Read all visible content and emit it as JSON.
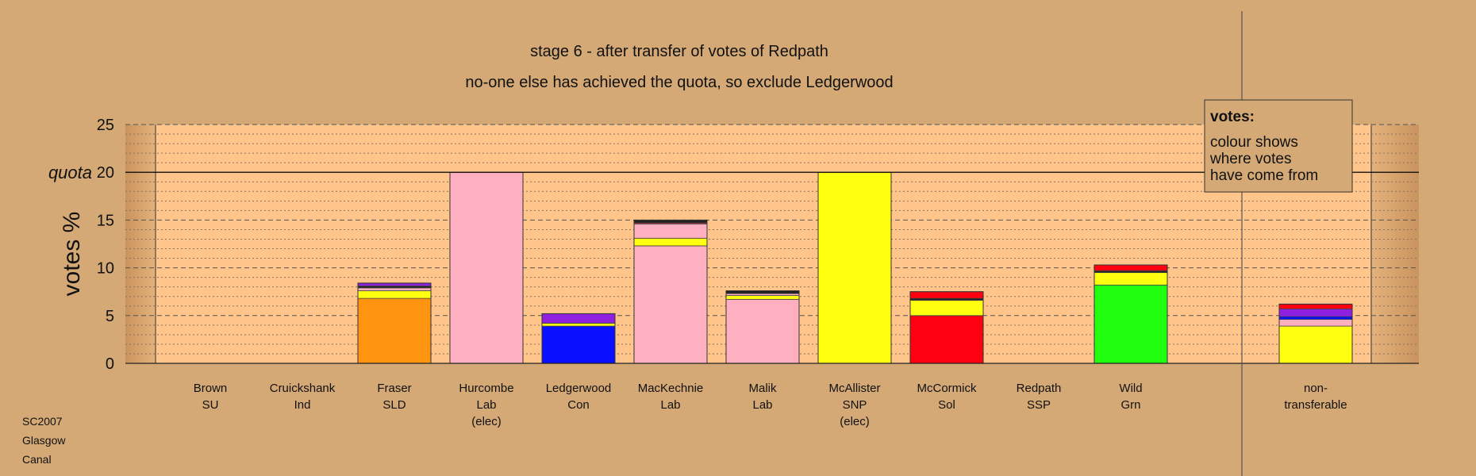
{
  "chart_data": {
    "type": "bar",
    "stacked": true,
    "title": "stage 6 - after transfer of votes of Redpath",
    "subtitle": "no-one else has achieved the quota, so exclude Ledgerwood",
    "ylabel": "votes %",
    "ylim": [
      0,
      25
    ],
    "yticks": [
      0,
      5,
      10,
      15,
      20,
      25
    ],
    "quota_label": "quota",
    "quota": 20,
    "grid": true,
    "legend": {
      "title": "votes:",
      "lines": [
        "colour shows",
        "where votes",
        "have come from"
      ],
      "placement": "top-right"
    },
    "footer": [
      "SC2007",
      "Glasgow",
      "Canal"
    ],
    "categories": [
      {
        "label": [
          "Brown",
          "SU"
        ],
        "segments": []
      },
      {
        "label": [
          "Cruickshank",
          "Ind"
        ],
        "segments": []
      },
      {
        "label": [
          "Fraser",
          "SLD"
        ],
        "segments": [
          {
            "value": 6.8,
            "color": "#ff9410"
          },
          {
            "value": 0.8,
            "color": "#ffff10"
          },
          {
            "value": 0.3,
            "color": "#ffb0c0"
          },
          {
            "value": 0.2,
            "color": "#222222"
          },
          {
            "value": 0.3,
            "color": "#9020e0"
          }
        ]
      },
      {
        "label": [
          "Hurcombe",
          "Lab",
          "(elec)"
        ],
        "segments": [
          {
            "value": 20,
            "color": "#ffb0c0"
          }
        ]
      },
      {
        "label": [
          "Ledgerwood",
          "Con"
        ],
        "segments": [
          {
            "value": 3.9,
            "color": "#0a10ff"
          },
          {
            "value": 0.3,
            "color": "#ffff10"
          },
          {
            "value": 1.0,
            "color": "#9020e0"
          }
        ]
      },
      {
        "label": [
          "MacKechnie",
          "Lab"
        ],
        "segments": [
          {
            "value": 12.3,
            "color": "#ffb0c0"
          },
          {
            "value": 0.8,
            "color": "#ffff10"
          },
          {
            "value": 1.5,
            "color": "#ffb0c0"
          },
          {
            "value": 0.1,
            "color": "#ff0010"
          },
          {
            "value": 0.3,
            "color": "#222222"
          }
        ]
      },
      {
        "label": [
          "Malik",
          "Lab"
        ],
        "segments": [
          {
            "value": 6.7,
            "color": "#ffb0c0"
          },
          {
            "value": 0.4,
            "color": "#ffff10"
          },
          {
            "value": 0.2,
            "color": "#ffb0c0"
          },
          {
            "value": 0.3,
            "color": "#222222"
          }
        ]
      },
      {
        "label": [
          "McAllister",
          "SNP",
          "(elec)"
        ],
        "segments": [
          {
            "value": 20,
            "color": "#ffff10"
          }
        ]
      },
      {
        "label": [
          "McCormick",
          "Sol"
        ],
        "segments": [
          {
            "value": 5.0,
            "color": "#ff0010"
          },
          {
            "value": 1.6,
            "color": "#ffff10"
          },
          {
            "value": 0.2,
            "color": "#222222"
          },
          {
            "value": 0.7,
            "color": "#ff0010"
          }
        ]
      },
      {
        "label": [
          "Redpath",
          "SSP"
        ],
        "segments": []
      },
      {
        "label": [
          "Wild",
          "Grn"
        ],
        "segments": [
          {
            "value": 8.2,
            "color": "#20ff10"
          },
          {
            "value": 1.3,
            "color": "#ffff10"
          },
          {
            "value": 0.2,
            "color": "#222222"
          },
          {
            "value": 0.6,
            "color": "#ff0010"
          }
        ]
      },
      {
        "label": [
          "non-",
          "transferable"
        ],
        "segments": [
          {
            "value": 3.9,
            "color": "#ffff10"
          },
          {
            "value": 0.7,
            "color": "#ffb0c0"
          },
          {
            "value": 0.3,
            "color": "#0a10ff"
          },
          {
            "value": 0.8,
            "color": "#9020e0"
          },
          {
            "value": 0.5,
            "color": "#ff0010"
          }
        ]
      }
    ]
  }
}
